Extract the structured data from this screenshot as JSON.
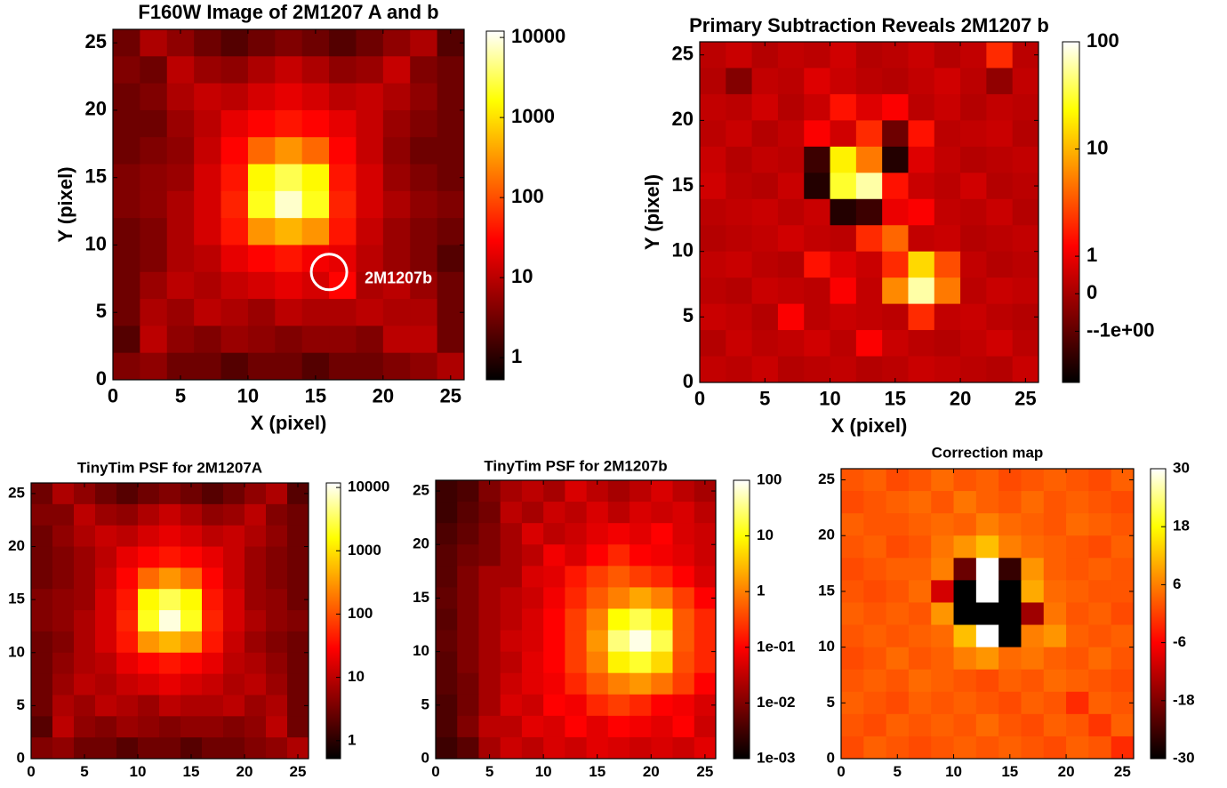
{
  "chart_data": [
    {
      "type": "heatmap",
      "title": "F160W Image of 2M1207 A and b",
      "xlabel": "X (pixel)",
      "ylabel": "Y (pixel)",
      "xlim": [
        0,
        26
      ],
      "ylim": [
        0,
        26
      ],
      "xticks": [
        0,
        5,
        10,
        15,
        20,
        25
      ],
      "yticks": [
        0,
        5,
        10,
        15,
        20,
        25
      ],
      "zscale": "log",
      "zlim": [
        0.53,
        12000
      ],
      "zticks": [
        1,
        10,
        100,
        1000,
        10000
      ],
      "colormap": "hot",
      "annotation": {
        "text": "2M1207b",
        "x": 16,
        "y": 8
      },
      "values": [
        [
          3,
          8,
          5,
          3,
          2,
          3,
          4,
          3,
          2,
          3,
          5,
          8,
          2
        ],
        [
          4,
          3,
          10,
          6,
          5,
          8,
          12,
          8,
          5,
          6,
          12,
          4,
          3
        ],
        [
          3,
          4,
          8,
          12,
          10,
          15,
          20,
          15,
          10,
          12,
          8,
          5,
          3
        ],
        [
          3,
          3,
          6,
          10,
          20,
          30,
          40,
          30,
          20,
          12,
          6,
          4,
          3
        ],
        [
          3,
          4,
          5,
          12,
          30,
          150,
          300,
          150,
          30,
          12,
          5,
          3,
          3
        ],
        [
          4,
          5,
          6,
          15,
          40,
          1500,
          3000,
          1500,
          40,
          15,
          6,
          4,
          3
        ],
        [
          4,
          5,
          8,
          15,
          50,
          2000,
          8000,
          2000,
          50,
          15,
          8,
          5,
          4
        ],
        [
          3,
          4,
          8,
          15,
          40,
          300,
          500,
          300,
          40,
          12,
          6,
          4,
          3
        ],
        [
          3,
          4,
          8,
          10,
          20,
          30,
          40,
          25,
          20,
          10,
          6,
          4,
          2
        ],
        [
          3,
          6,
          10,
          8,
          12,
          15,
          20,
          15,
          30,
          8,
          10,
          6,
          3
        ],
        [
          3,
          8,
          6,
          10,
          8,
          6,
          10,
          8,
          8,
          10,
          8,
          8,
          3
        ],
        [
          2,
          10,
          5,
          4,
          6,
          5,
          4,
          5,
          5,
          4,
          10,
          10,
          3
        ],
        [
          4,
          5,
          3,
          3,
          2,
          3,
          3,
          2,
          3,
          3,
          4,
          5,
          8
        ]
      ]
    },
    {
      "type": "heatmap",
      "title": "Primary Subtraction Reveals 2M1207 b",
      "xlabel": "X (pixel)",
      "ylabel": "Y (pixel)",
      "xlim": [
        0,
        26
      ],
      "ylim": [
        0,
        26
      ],
      "xticks": [
        0,
        5,
        10,
        15,
        20,
        25
      ],
      "yticks": [
        0,
        5,
        10,
        15,
        20,
        25
      ],
      "zscale": "symlog",
      "linscale": 0.35,
      "zlim": [
        -3,
        100
      ],
      "zticks": [
        100,
        10,
        1,
        0,
        {
          "value": -1,
          "label": "--1e+00"
        }
      ],
      "colormap": "hot",
      "values": [
        [
          0.3,
          0.5,
          0.2,
          0.4,
          0.3,
          0.6,
          0.2,
          0.3,
          0.5,
          0.2,
          0.4,
          2,
          0.3
        ],
        [
          0.2,
          -0.5,
          0.4,
          0.3,
          0.8,
          0.5,
          0.3,
          0.2,
          0.4,
          0.6,
          0.3,
          -0.3,
          0.4
        ],
        [
          0.4,
          0.3,
          0.6,
          0.2,
          0.5,
          1.5,
          0.8,
          1.2,
          0.3,
          0.5,
          0.2,
          0.4,
          0.3
        ],
        [
          0.3,
          0.5,
          0.2,
          0.4,
          1.2,
          0.6,
          2,
          -0.8,
          1.5,
          0.3,
          0.4,
          0.5,
          0.2
        ],
        [
          0.5,
          0.2,
          0.4,
          0.3,
          -1.5,
          20,
          5,
          -2,
          0.8,
          0.4,
          0.2,
          0.3,
          0.4
        ],
        [
          0.6,
          0.3,
          0.2,
          0.5,
          -2,
          30,
          60,
          1.5,
          0.5,
          0.3,
          0.6,
          0.2,
          0.3
        ],
        [
          0.3,
          0.4,
          0.5,
          0.3,
          0.5,
          -2,
          -1.5,
          1,
          1.2,
          0.4,
          0.3,
          0.5,
          0.2
        ],
        [
          0.2,
          0.3,
          0.4,
          0.6,
          0.4,
          0.3,
          2,
          4,
          0.4,
          0.5,
          0.2,
          0.3,
          0.4
        ],
        [
          0.4,
          0.5,
          0.3,
          0.2,
          1.5,
          0.8,
          0.5,
          2,
          15,
          3,
          0.4,
          0.2,
          0.3
        ],
        [
          0.3,
          0.2,
          0.5,
          0.4,
          0.3,
          1.2,
          0.4,
          6,
          60,
          5,
          0.3,
          0.5,
          0.4
        ],
        [
          0.5,
          0.4,
          0.2,
          1.2,
          0.3,
          0.5,
          0.4,
          0.3,
          2,
          0.4,
          0.5,
          0.3,
          0.2
        ],
        [
          0.2,
          0.5,
          0.3,
          0.4,
          0.6,
          0.3,
          1.2,
          0.5,
          0.3,
          0.2,
          0.4,
          0.6,
          0.3
        ],
        [
          0.4,
          0.3,
          0.5,
          0.2,
          0.3,
          0.4,
          0.2,
          0.3,
          0.5,
          0.4,
          0.3,
          0.2,
          0.5
        ]
      ]
    },
    {
      "type": "heatmap",
      "title": "TinyTim PSF for 2M1207A",
      "xlim": [
        0,
        26
      ],
      "ylim": [
        0,
        26
      ],
      "xticks": [
        0,
        5,
        10,
        15,
        20,
        25
      ],
      "yticks": [
        0,
        5,
        10,
        15,
        20,
        25
      ],
      "zscale": "log",
      "zlim": [
        0.52,
        11800
      ],
      "zticks": [
        1,
        10,
        100,
        1000,
        10000
      ],
      "colormap": "hot",
      "values": [
        [
          3,
          8,
          5,
          3,
          2,
          3,
          4,
          3,
          2,
          3,
          5,
          8,
          2
        ],
        [
          4,
          4,
          10,
          6,
          5,
          8,
          12,
          8,
          5,
          6,
          10,
          4,
          3
        ],
        [
          3,
          5,
          8,
          12,
          10,
          15,
          20,
          15,
          10,
          12,
          8,
          5,
          3
        ],
        [
          3,
          4,
          6,
          10,
          20,
          30,
          40,
          30,
          20,
          12,
          6,
          4,
          3
        ],
        [
          3,
          4,
          6,
          12,
          30,
          150,
          300,
          150,
          30,
          12,
          6,
          4,
          3
        ],
        [
          4,
          5,
          6,
          15,
          40,
          1500,
          3000,
          1500,
          40,
          15,
          6,
          5,
          3
        ],
        [
          4,
          5,
          8,
          15,
          50,
          2000,
          9000,
          2000,
          50,
          15,
          8,
          5,
          4
        ],
        [
          3,
          4,
          8,
          15,
          40,
          300,
          500,
          300,
          40,
          12,
          6,
          4,
          3
        ],
        [
          3,
          5,
          8,
          10,
          20,
          30,
          40,
          30,
          20,
          10,
          8,
          5,
          3
        ],
        [
          3,
          6,
          10,
          8,
          12,
          15,
          20,
          15,
          12,
          8,
          10,
          6,
          3
        ],
        [
          3,
          8,
          6,
          10,
          8,
          6,
          10,
          8,
          8,
          10,
          6,
          8,
          3
        ],
        [
          2,
          10,
          5,
          4,
          6,
          5,
          4,
          5,
          5,
          4,
          5,
          10,
          3
        ],
        [
          4,
          5,
          3,
          3,
          2,
          3,
          3,
          2,
          3,
          3,
          4,
          5,
          8
        ]
      ]
    },
    {
      "type": "heatmap",
      "title": "TinyTim PSF for 2M1207b",
      "xlim": [
        0,
        26
      ],
      "ylim": [
        0,
        26
      ],
      "xticks": [
        0,
        5,
        10,
        15,
        20,
        25
      ],
      "yticks": [
        0,
        5,
        10,
        15,
        20,
        25
      ],
      "zscale": "log",
      "zlim": [
        0.001,
        100
      ],
      "zticks": [
        {
          "value": 0.001,
          "label": "1e-03"
        },
        {
          "value": 0.01,
          "label": "1e-02"
        },
        {
          "value": 0.1,
          "label": "1e-01"
        },
        1,
        10,
        100
      ],
      "colormap": "hot",
      "values": [
        [
          0.003,
          0.004,
          0.01,
          0.02,
          0.03,
          0.02,
          0.05,
          0.03,
          0.02,
          0.03,
          0.05,
          0.03,
          0.02
        ],
        [
          0.003,
          0.005,
          0.008,
          0.03,
          0.02,
          0.04,
          0.03,
          0.05,
          0.03,
          0.05,
          0.04,
          0.05,
          0.03
        ],
        [
          0.004,
          0.006,
          0.01,
          0.02,
          0.05,
          0.03,
          0.04,
          0.06,
          0.08,
          0.06,
          0.1,
          0.05,
          0.04
        ],
        [
          0.005,
          0.008,
          0.01,
          0.02,
          0.03,
          0.08,
          0.05,
          0.1,
          0.2,
          0.1,
          0.08,
          0.06,
          0.04
        ],
        [
          0.005,
          0.01,
          0.02,
          0.02,
          0.05,
          0.06,
          0.15,
          0.3,
          0.5,
          0.3,
          0.2,
          0.1,
          0.05
        ],
        [
          0.006,
          0.01,
          0.02,
          0.03,
          0.04,
          0.08,
          0.2,
          0.5,
          1,
          2,
          1,
          0.3,
          0.1
        ],
        [
          0.005,
          0.01,
          0.02,
          0.03,
          0.05,
          0.1,
          0.3,
          1,
          10,
          20,
          8,
          0.5,
          0.2
        ],
        [
          0.006,
          0.01,
          0.02,
          0.04,
          0.05,
          0.1,
          0.3,
          1.5,
          30,
          80,
          20,
          0.5,
          0.2
        ],
        [
          0.005,
          0.01,
          0.02,
          0.03,
          0.06,
          0.1,
          0.3,
          1,
          8,
          15,
          5,
          0.4,
          0.2
        ],
        [
          0.005,
          0.008,
          0.02,
          0.04,
          0.06,
          0.08,
          0.2,
          0.5,
          1,
          1.5,
          0.8,
          0.3,
          0.1
        ],
        [
          0.004,
          0.008,
          0.02,
          0.05,
          0.04,
          0.1,
          0.08,
          0.2,
          0.3,
          0.2,
          0.1,
          0.08,
          0.05
        ],
        [
          0.004,
          0.01,
          0.03,
          0.03,
          0.06,
          0.05,
          0.1,
          0.06,
          0.1,
          0.08,
          0.06,
          0.1,
          0.04
        ],
        [
          0.003,
          0.005,
          0.02,
          0.04,
          0.03,
          0.05,
          0.04,
          0.06,
          0.05,
          0.04,
          0.05,
          0.04,
          0.06
        ]
      ]
    },
    {
      "type": "heatmap",
      "title": "Correction map",
      "xlim": [
        0,
        26
      ],
      "ylim": [
        0,
        26
      ],
      "xticks": [
        0,
        5,
        10,
        15,
        20,
        25
      ],
      "yticks": [
        0,
        5,
        10,
        15,
        20,
        25
      ],
      "zscale": "linear",
      "zlim": [
        -30,
        30
      ],
      "zticks": [
        30,
        18,
        6,
        -6,
        -18,
        -30
      ],
      "colormap": "hot",
      "values": [
        [
          2,
          3,
          1,
          2,
          4,
          2,
          3,
          1,
          2,
          3,
          2,
          1,
          3
        ],
        [
          1,
          2,
          3,
          4,
          2,
          5,
          3,
          2,
          4,
          2,
          3,
          2,
          1
        ],
        [
          3,
          2,
          2,
          3,
          4,
          3,
          6,
          4,
          3,
          2,
          4,
          3,
          2
        ],
        [
          2,
          3,
          1,
          2,
          5,
          8,
          12,
          6,
          4,
          3,
          2,
          1,
          3
        ],
        [
          1,
          2,
          3,
          3,
          6,
          -20,
          30,
          -25,
          8,
          3,
          2,
          3,
          2
        ],
        [
          2,
          1,
          2,
          4,
          -10,
          -30,
          30,
          -30,
          10,
          4,
          3,
          2,
          2
        ],
        [
          3,
          2,
          3,
          2,
          8,
          -30,
          -30,
          -30,
          -15,
          5,
          2,
          3,
          1
        ],
        [
          2,
          3,
          2,
          3,
          4,
          12,
          30,
          -30,
          6,
          8,
          3,
          2,
          3
        ],
        [
          1,
          2,
          4,
          2,
          3,
          6,
          8,
          4,
          5,
          3,
          2,
          4,
          2
        ],
        [
          2,
          3,
          2,
          4,
          3,
          2,
          1,
          3,
          2,
          4,
          3,
          2,
          1
        ],
        [
          3,
          2,
          1,
          3,
          2,
          3,
          2,
          1,
          3,
          2,
          -2,
          3,
          2
        ],
        [
          2,
          1,
          3,
          2,
          3,
          2,
          4,
          2,
          1,
          3,
          2,
          -1,
          3
        ],
        [
          1,
          3,
          2,
          1,
          2,
          3,
          2,
          3,
          2,
          1,
          3,
          2,
          -2
        ]
      ]
    }
  ]
}
